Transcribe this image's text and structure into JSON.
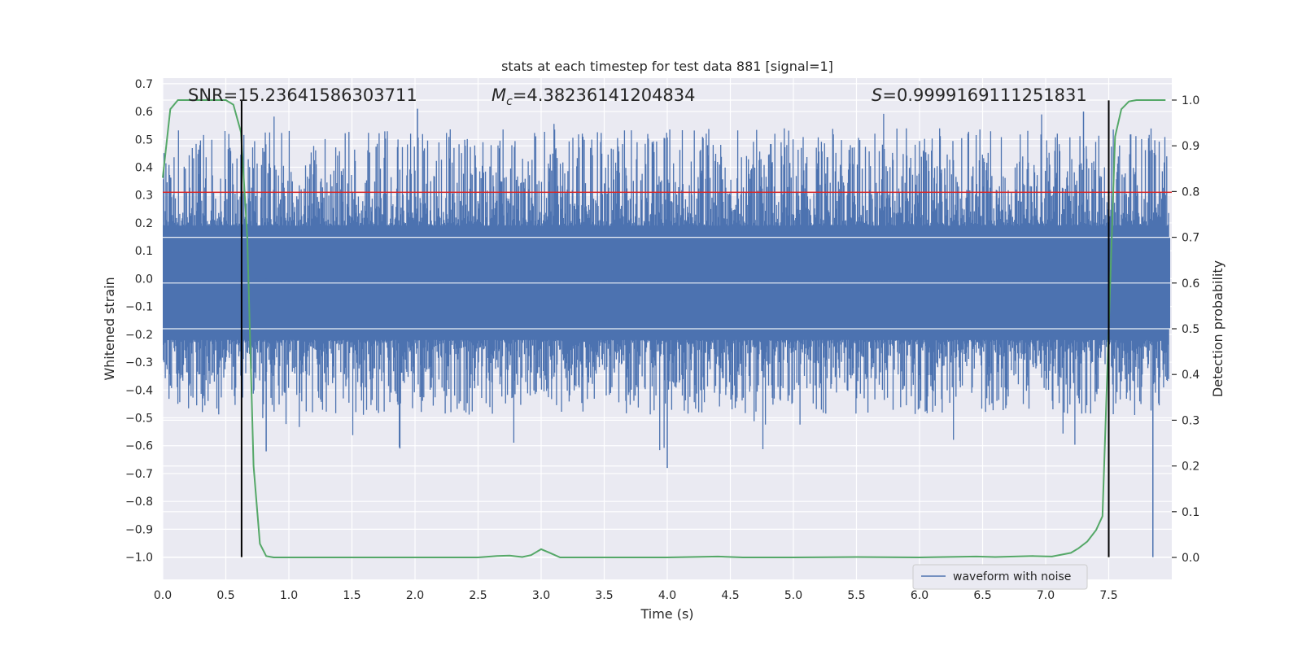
{
  "chart_data": {
    "type": "line",
    "title": "stats at each timestep for test data 881 [signal=1]",
    "xlabel": "Time (s)",
    "ylabel": "Whitened strain",
    "y2label": "Detection probability",
    "xlim": [
      0.0,
      8.0
    ],
    "ylim": [
      -1.08,
      0.72
    ],
    "y2lim": [
      -0.048,
      1.048
    ],
    "xticks": [
      0.0,
      0.5,
      1.0,
      1.5,
      2.0,
      2.5,
      3.0,
      3.5,
      4.0,
      4.5,
      5.0,
      5.5,
      6.0,
      6.5,
      7.0,
      7.5
    ],
    "xtick_labels": [
      "0.0",
      "0.5",
      "1.0",
      "1.5",
      "2.0",
      "2.5",
      "3.0",
      "3.5",
      "4.0",
      "4.5",
      "5.0",
      "5.5",
      "6.0",
      "6.5",
      "7.0",
      "7.5"
    ],
    "yticks": [
      0.7,
      0.6,
      0.5,
      0.4,
      0.3,
      0.2,
      0.1,
      0.0,
      -0.1,
      -0.2,
      -0.3,
      -0.4,
      -0.5,
      -0.6,
      -0.7,
      -0.8,
      -0.9,
      -1.0
    ],
    "ytick_labels": [
      "0.7",
      "0.6",
      "0.5",
      "0.4",
      "0.3",
      "0.2",
      "0.1",
      "0.0",
      "−0.1",
      "−0.2",
      "−0.3",
      "−0.4",
      "−0.5",
      "−0.6",
      "−0.7",
      "−0.8",
      "−0.9",
      "−1.0"
    ],
    "y2ticks": [
      1.0,
      0.9,
      0.8,
      0.7,
      0.6,
      0.5,
      0.4,
      0.3,
      0.2,
      0.1,
      0.0
    ],
    "y2tick_labels": [
      "1.0",
      "0.9",
      "0.8",
      "0.7",
      "0.6",
      "0.5",
      "0.4",
      "0.3",
      "0.2",
      "0.1",
      "0.0"
    ],
    "grid": true,
    "annotations": {
      "snr": "SNR=15.23641586303711",
      "mc_symbol": "M",
      "mc_sub": "c",
      "mc_value": "=4.38236141204834",
      "s_symbol": "S",
      "s_value": "=0.9999169111251831"
    },
    "threshold": {
      "y": 0.31,
      "color": "#d62728"
    },
    "vlines": {
      "x": [
        0.625,
        7.5
      ],
      "ymin": -1.0,
      "ymax": 0.64,
      "color": "#000000"
    },
    "series": [
      {
        "name": "waveform with noise",
        "axis": "left",
        "color": "#4c72b0",
        "style": "dense-noise",
        "core_range": [
          -0.18,
          0.15
        ],
        "typical_peak": [
          -0.45,
          0.5
        ],
        "extreme_low": -1.0,
        "extreme_high": 0.61
      },
      {
        "name": "detection probability",
        "axis": "right",
        "color": "#55a868",
        "x": [
          0.0,
          0.06,
          0.12,
          0.2,
          0.3,
          0.4,
          0.5,
          0.56,
          0.62,
          0.67,
          0.72,
          0.77,
          0.82,
          0.88,
          0.95,
          1.0,
          1.5,
          2.0,
          2.5,
          2.65,
          2.75,
          2.85,
          2.92,
          3.0,
          3.07,
          3.15,
          3.4,
          4.0,
          4.4,
          4.6,
          5.0,
          5.5,
          6.0,
          6.45,
          6.6,
          6.9,
          7.05,
          7.2,
          7.26,
          7.33,
          7.4,
          7.45,
          7.5,
          7.55,
          7.6,
          7.66,
          7.72,
          7.82,
          7.95
        ],
        "y": [
          0.83,
          0.98,
          1.0,
          1.0,
          1.0,
          1.0,
          1.0,
          0.99,
          0.93,
          0.7,
          0.2,
          0.03,
          0.003,
          0.0,
          0.0,
          0.0,
          0.0,
          0.0,
          0.0,
          0.003,
          0.004,
          0.001,
          0.005,
          0.018,
          0.01,
          0.0,
          0.0,
          0.0,
          0.002,
          0.0,
          0.0,
          0.001,
          0.0,
          0.002,
          0.001,
          0.003,
          0.002,
          0.01,
          0.02,
          0.035,
          0.06,
          0.09,
          0.5,
          0.92,
          0.98,
          0.997,
          1.0,
          1.0,
          1.0
        ]
      }
    ],
    "legend": {
      "entries": [
        "waveform with noise"
      ],
      "placement": "lower-right"
    }
  }
}
